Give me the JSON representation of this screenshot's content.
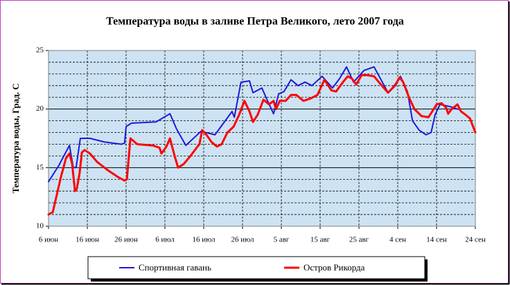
{
  "chart_data": {
    "type": "line",
    "title": "Температура воды в заливе Петра Великого,  лето 2007 года",
    "y_label": "Температура воды, Град. С",
    "xlim": [
      0,
      110
    ],
    "xticks": [
      {
        "value": 0,
        "label": "6 июн"
      },
      {
        "value": 10,
        "label": "16 июн"
      },
      {
        "value": 20,
        "label": "26 июн"
      },
      {
        "value": 30,
        "label": "6 июл"
      },
      {
        "value": 40,
        "label": "16 июл"
      },
      {
        "value": 50,
        "label": "26 июл"
      },
      {
        "value": 60,
        "label": "5 авг"
      },
      {
        "value": 70,
        "label": "15 авг"
      },
      {
        "value": 80,
        "label": "25 авг"
      },
      {
        "value": 90,
        "label": "4 сен"
      },
      {
        "value": 100,
        "label": "14 сен"
      },
      {
        "value": 110,
        "label": "24 сен"
      }
    ],
    "ylim": [
      10,
      25
    ],
    "yticks": [
      10,
      15,
      20,
      25
    ],
    "yminorticks": [
      11,
      12,
      13,
      14,
      16,
      17,
      18,
      19,
      21,
      22,
      23,
      24
    ],
    "grid": true,
    "legend": "bottom",
    "series": [
      {
        "name": "Спортивная гавань",
        "color": "#1a1adc",
        "width": 2,
        "x": [
          0,
          2.7,
          5.4,
          6.4,
          7.1,
          8.2,
          10.7,
          14.3,
          18.8,
          19.6,
          20,
          21.4,
          27.7,
          31.3,
          33,
          35.4,
          39.3,
          42.9,
          47.3,
          47.9,
          49.6,
          51.8,
          52.7,
          55,
          56.3,
          58,
          59.3,
          60.7,
          62.5,
          64.3,
          66.1,
          67.9,
          70.5,
          73.2,
          75,
          76.8,
          78.6,
          81.3,
          83.9,
          85.7,
          87.5,
          89.3,
          90.7,
          92.5,
          93.8,
          95.5,
          97.3,
          98.6,
          99.6,
          100.9,
          103.6,
          105.4,
          106.1
        ],
        "values": [
          13.8,
          15.2,
          16.9,
          15.0,
          15.0,
          17.5,
          17.5,
          17.2,
          17.0,
          17.1,
          18.5,
          18.8,
          18.9,
          19.6,
          18.3,
          16.9,
          18.1,
          17.8,
          19.8,
          19.3,
          22.3,
          22.4,
          21.4,
          21.8,
          20.8,
          19.6,
          21.3,
          21.5,
          22.5,
          22.0,
          22.3,
          22.0,
          22.8,
          21.8,
          22.6,
          23.6,
          22.3,
          23.3,
          23.6,
          22.5,
          21.4,
          22.1,
          22.8,
          21.5,
          19.0,
          18.2,
          17.8,
          18.0,
          19.5,
          20.4,
          20.2,
          20.0,
          20.0
        ]
      },
      {
        "name": "Остров Рикорда",
        "color": "#ff0000",
        "width": 3,
        "x": [
          0,
          1.1,
          1.8,
          3.2,
          4.5,
          5.4,
          6.1,
          6.8,
          7.3,
          8,
          8.6,
          9.3,
          10.7,
          12.5,
          15.2,
          17.9,
          19.6,
          20.2,
          21.1,
          22.9,
          26.8,
          28.6,
          29.1,
          30.4,
          31.3,
          32.5,
          33.4,
          34.8,
          36.6,
          38.4,
          38.9,
          39.6,
          40.7,
          42,
          43.4,
          44.6,
          46.1,
          47.7,
          49.1,
          50.5,
          51.8,
          52.7,
          53.9,
          55.4,
          56.8,
          58,
          58.6,
          59.6,
          61.1,
          62.5,
          63.9,
          65.7,
          67.5,
          69.3,
          71.1,
          72.9,
          74.1,
          75.9,
          77.1,
          78.2,
          79.3,
          80.7,
          82.1,
          83.9,
          85.4,
          87.5,
          89.3,
          90.5,
          91.4,
          92.9,
          94.3,
          96.1,
          97.9,
          98.9,
          100,
          101.3,
          102.5,
          103,
          103.9,
          105.4,
          106.3,
          107.5,
          108.6,
          110
        ],
        "values": [
          11.0,
          11.2,
          12.2,
          14.2,
          15.8,
          16.2,
          15.3,
          13.0,
          13.2,
          14.5,
          16.3,
          16.5,
          16.2,
          15.5,
          14.8,
          14.2,
          13.9,
          14.0,
          17.5,
          17.0,
          16.9,
          16.7,
          16.2,
          16.8,
          17.5,
          16.0,
          15.0,
          15.3,
          16.0,
          16.8,
          17.0,
          18.2,
          17.8,
          17.2,
          16.8,
          17.0,
          18.0,
          18.5,
          19.5,
          20.7,
          19.8,
          18.9,
          19.5,
          20.8,
          20.4,
          20.7,
          20.0,
          20.7,
          20.7,
          21.2,
          21.2,
          20.7,
          20.9,
          21.2,
          22.5,
          21.6,
          21.5,
          22.3,
          22.8,
          22.6,
          22.1,
          22.9,
          22.9,
          22.8,
          22.2,
          21.4,
          22.0,
          22.7,
          22.3,
          21.0,
          20.0,
          19.4,
          19.3,
          19.8,
          20.4,
          20.5,
          20.1,
          19.6,
          20.0,
          20.4,
          19.8,
          19.5,
          19.2,
          18.0
        ]
      }
    ]
  }
}
